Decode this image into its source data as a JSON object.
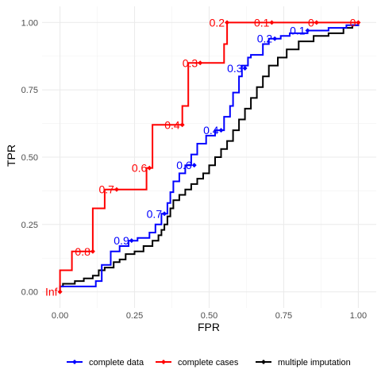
{
  "chart_data": {
    "type": "line",
    "title": "",
    "xlabel": "FPR",
    "ylabel": "TPR",
    "xlim": [
      -0.06,
      1.06
    ],
    "ylim": [
      -0.06,
      1.06
    ],
    "x_ticks": [
      "0.00",
      "0.25",
      "0.50",
      "0.75",
      "1.00"
    ],
    "y_ticks": [
      "0.00",
      "0.25",
      "0.50",
      "0.75",
      "1.00"
    ],
    "grid": true,
    "legend_position": "bottom",
    "series": [
      {
        "name": "complete data",
        "color": "#0000ff",
        "points": [
          [
            0.0,
            0.0
          ],
          [
            0.0,
            0.02
          ],
          [
            0.05,
            0.02
          ],
          [
            0.12,
            0.02
          ],
          [
            0.12,
            0.04
          ],
          [
            0.14,
            0.04
          ],
          [
            0.14,
            0.1
          ],
          [
            0.17,
            0.1
          ],
          [
            0.17,
            0.15
          ],
          [
            0.2,
            0.15
          ],
          [
            0.2,
            0.17
          ],
          [
            0.23,
            0.17
          ],
          [
            0.23,
            0.19
          ],
          [
            0.26,
            0.19
          ],
          [
            0.26,
            0.2
          ],
          [
            0.3,
            0.2
          ],
          [
            0.3,
            0.22
          ],
          [
            0.32,
            0.22
          ],
          [
            0.32,
            0.25
          ],
          [
            0.34,
            0.25
          ],
          [
            0.34,
            0.29
          ],
          [
            0.36,
            0.29
          ],
          [
            0.36,
            0.33
          ],
          [
            0.37,
            0.33
          ],
          [
            0.37,
            0.37
          ],
          [
            0.38,
            0.37
          ],
          [
            0.38,
            0.41
          ],
          [
            0.4,
            0.41
          ],
          [
            0.4,
            0.44
          ],
          [
            0.42,
            0.44
          ],
          [
            0.42,
            0.47
          ],
          [
            0.44,
            0.47
          ],
          [
            0.44,
            0.51
          ],
          [
            0.46,
            0.51
          ],
          [
            0.46,
            0.55
          ],
          [
            0.49,
            0.55
          ],
          [
            0.49,
            0.58
          ],
          [
            0.52,
            0.58
          ],
          [
            0.52,
            0.6
          ],
          [
            0.55,
            0.6
          ],
          [
            0.55,
            0.65
          ],
          [
            0.57,
            0.65
          ],
          [
            0.57,
            0.69
          ],
          [
            0.58,
            0.69
          ],
          [
            0.58,
            0.74
          ],
          [
            0.6,
            0.74
          ],
          [
            0.6,
            0.8
          ],
          [
            0.61,
            0.8
          ],
          [
            0.61,
            0.84
          ],
          [
            0.63,
            0.84
          ],
          [
            0.63,
            0.87
          ],
          [
            0.64,
            0.87
          ],
          [
            0.64,
            0.88
          ],
          [
            0.68,
            0.88
          ],
          [
            0.68,
            0.92
          ],
          [
            0.7,
            0.92
          ],
          [
            0.7,
            0.94
          ],
          [
            0.74,
            0.94
          ],
          [
            0.74,
            0.95
          ],
          [
            0.77,
            0.95
          ],
          [
            0.77,
            0.96
          ],
          [
            0.83,
            0.96
          ],
          [
            0.83,
            0.97
          ],
          [
            0.9,
            0.97
          ],
          [
            0.9,
            0.98
          ],
          [
            0.96,
            0.98
          ],
          [
            0.96,
            0.99
          ],
          [
            1.0,
            0.99
          ],
          [
            1.0,
            1.0
          ]
        ],
        "thresholds": [
          {
            "label": "0.9",
            "x": 0.24,
            "y": 0.19
          },
          {
            "label": "0.7",
            "x": 0.35,
            "y": 0.29
          },
          {
            "label": "0.6",
            "x": 0.45,
            "y": 0.47
          },
          {
            "label": "0.4",
            "x": 0.54,
            "y": 0.6
          },
          {
            "label": "0.3",
            "x": 0.62,
            "y": 0.83
          },
          {
            "label": "0.2",
            "x": 0.72,
            "y": 0.94
          },
          {
            "label": "0.1",
            "x": 0.83,
            "y": 0.97
          }
        ]
      },
      {
        "name": "complete cases",
        "color": "#ff0000",
        "points": [
          [
            0.0,
            0.0
          ],
          [
            0.0,
            0.08
          ],
          [
            0.04,
            0.08
          ],
          [
            0.04,
            0.15
          ],
          [
            0.11,
            0.15
          ],
          [
            0.11,
            0.31
          ],
          [
            0.15,
            0.31
          ],
          [
            0.15,
            0.38
          ],
          [
            0.29,
            0.38
          ],
          [
            0.29,
            0.46
          ],
          [
            0.31,
            0.46
          ],
          [
            0.31,
            0.62
          ],
          [
            0.41,
            0.62
          ],
          [
            0.41,
            0.69
          ],
          [
            0.43,
            0.69
          ],
          [
            0.43,
            0.85
          ],
          [
            0.55,
            0.85
          ],
          [
            0.55,
            0.92
          ],
          [
            0.56,
            0.92
          ],
          [
            0.56,
            1.0
          ],
          [
            1.0,
            1.0
          ]
        ],
        "thresholds": [
          {
            "label": "Inf",
            "x": 0.0,
            "y": 0.0
          },
          {
            "label": "0.8",
            "x": 0.11,
            "y": 0.15
          },
          {
            "label": "0.7",
            "x": 0.19,
            "y": 0.38
          },
          {
            "label": "0.6",
            "x": 0.3,
            "y": 0.46
          },
          {
            "label": "0.4",
            "x": 0.41,
            "y": 0.62
          },
          {
            "label": "0.3",
            "x": 0.47,
            "y": 0.85
          },
          {
            "label": "0.2",
            "x": 0.56,
            "y": 1.0
          },
          {
            "label": "0.1",
            "x": 0.71,
            "y": 1.0
          },
          {
            "label": "0",
            "x": 0.86,
            "y": 1.0
          },
          {
            "label": "0",
            "x": 1.0,
            "y": 1.0
          }
        ]
      },
      {
        "name": "multiple imputation",
        "color": "#000000",
        "points": [
          [
            0.0,
            0.0
          ],
          [
            0.0,
            0.02
          ],
          [
            0.01,
            0.02
          ],
          [
            0.01,
            0.03
          ],
          [
            0.05,
            0.03
          ],
          [
            0.05,
            0.04
          ],
          [
            0.08,
            0.04
          ],
          [
            0.08,
            0.05
          ],
          [
            0.11,
            0.05
          ],
          [
            0.11,
            0.06
          ],
          [
            0.13,
            0.06
          ],
          [
            0.13,
            0.08
          ],
          [
            0.15,
            0.08
          ],
          [
            0.15,
            0.09
          ],
          [
            0.18,
            0.09
          ],
          [
            0.18,
            0.11
          ],
          [
            0.2,
            0.11
          ],
          [
            0.2,
            0.12
          ],
          [
            0.22,
            0.12
          ],
          [
            0.22,
            0.14
          ],
          [
            0.25,
            0.14
          ],
          [
            0.25,
            0.15
          ],
          [
            0.28,
            0.15
          ],
          [
            0.28,
            0.17
          ],
          [
            0.31,
            0.17
          ],
          [
            0.31,
            0.19
          ],
          [
            0.33,
            0.19
          ],
          [
            0.33,
            0.21
          ],
          [
            0.34,
            0.21
          ],
          [
            0.34,
            0.23
          ],
          [
            0.35,
            0.23
          ],
          [
            0.35,
            0.25
          ],
          [
            0.36,
            0.25
          ],
          [
            0.36,
            0.28
          ],
          [
            0.37,
            0.28
          ],
          [
            0.37,
            0.31
          ],
          [
            0.38,
            0.31
          ],
          [
            0.38,
            0.34
          ],
          [
            0.4,
            0.34
          ],
          [
            0.4,
            0.36
          ],
          [
            0.42,
            0.36
          ],
          [
            0.42,
            0.38
          ],
          [
            0.44,
            0.38
          ],
          [
            0.44,
            0.4
          ],
          [
            0.46,
            0.4
          ],
          [
            0.46,
            0.42
          ],
          [
            0.48,
            0.42
          ],
          [
            0.48,
            0.44
          ],
          [
            0.5,
            0.44
          ],
          [
            0.5,
            0.47
          ],
          [
            0.52,
            0.47
          ],
          [
            0.52,
            0.5
          ],
          [
            0.54,
            0.5
          ],
          [
            0.54,
            0.53
          ],
          [
            0.56,
            0.53
          ],
          [
            0.56,
            0.56
          ],
          [
            0.58,
            0.56
          ],
          [
            0.58,
            0.6
          ],
          [
            0.6,
            0.6
          ],
          [
            0.6,
            0.64
          ],
          [
            0.62,
            0.64
          ],
          [
            0.62,
            0.68
          ],
          [
            0.64,
            0.68
          ],
          [
            0.64,
            0.72
          ],
          [
            0.66,
            0.72
          ],
          [
            0.66,
            0.76
          ],
          [
            0.68,
            0.76
          ],
          [
            0.68,
            0.8
          ],
          [
            0.7,
            0.8
          ],
          [
            0.7,
            0.84
          ],
          [
            0.73,
            0.84
          ],
          [
            0.73,
            0.87
          ],
          [
            0.76,
            0.87
          ],
          [
            0.76,
            0.9
          ],
          [
            0.8,
            0.9
          ],
          [
            0.8,
            0.93
          ],
          [
            0.85,
            0.93
          ],
          [
            0.85,
            0.95
          ],
          [
            0.9,
            0.95
          ],
          [
            0.9,
            0.96
          ],
          [
            0.95,
            0.96
          ],
          [
            0.95,
            0.98
          ],
          [
            0.98,
            0.98
          ],
          [
            0.98,
            0.99
          ],
          [
            1.0,
            0.99
          ],
          [
            1.0,
            1.0
          ]
        ],
        "thresholds": []
      }
    ]
  }
}
